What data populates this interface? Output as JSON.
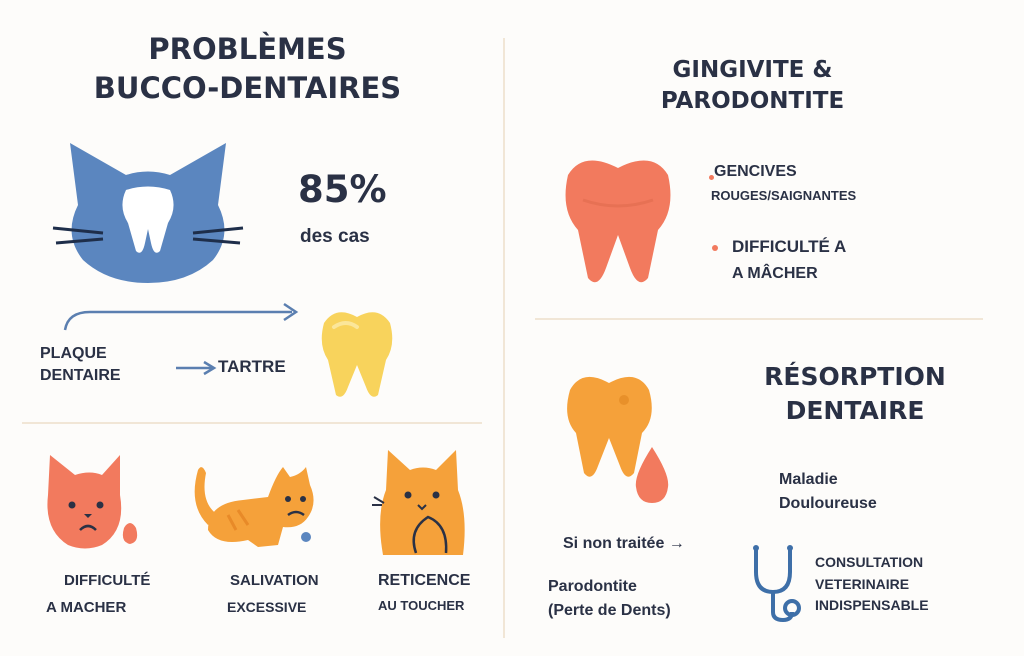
{
  "left": {
    "title_line1": "PROBLÈMES",
    "title_line2": "BUCCO-DENTAIRES",
    "stat_value": "85%",
    "stat_label": "des cas",
    "plaque_line1": "PLAQUE",
    "plaque_line2": "DENTAIRE",
    "tartre_label": "TARTRE",
    "symptoms": [
      {
        "line1": "DIFFICULTÉ",
        "line2": "A MACHER"
      },
      {
        "line1": "SALIVATION",
        "line2": "EXCESSIVE"
      },
      {
        "line1": "RETICENCE",
        "line2": "AU TOUCHER"
      }
    ]
  },
  "right_top": {
    "title_line1": "GINGIVITE &",
    "title_line2": "PARODONTITE",
    "bullet1_line1": "GENCIVES",
    "bullet1_line2": "ROUGES/SAIGNANTES",
    "bullet2_line1": "DIFFICULTÉ A",
    "bullet2_line2": "A MÂCHER"
  },
  "right_bottom": {
    "title_line1": "RÉSORPTION",
    "title_line2": "DENTAIRE",
    "maladie_line1": "Maladie",
    "maladie_line2": "Douloureuse",
    "untreated": "Si non traitée →",
    "result_line1": "Parodontite",
    "result_line2": "(Perte de Dents)",
    "consult_line1": "CONSULTATION",
    "consult_line2": "VETERINAIRE",
    "consult_line3": "INDISPENSABLE"
  },
  "colors": {
    "navy": "#2a3145",
    "cat_blue": "#5b86bf",
    "tooth_red": "#f27a5e",
    "tooth_yellow": "#f8d35c",
    "cat_orange": "#f5a13a",
    "divider": "#f1e6d6"
  },
  "icons": {
    "cat_head": "blue-cat-head-with-tooth-icon",
    "arrow_curve": "curved-arrow-icon",
    "arrow_small": "right-arrow-icon",
    "yellow_tooth": "yellow-tooth-icon",
    "red_tooth": "red-tooth-icon",
    "orange_tooth": "orange-tooth-icon",
    "blood_drop": "blood-drop-icon",
    "stethoscope": "stethoscope-icon",
    "cat_sad": "sad-red-cat-icon",
    "cat_drool": "drooling-orange-cat-icon",
    "cat_reticent": "reticent-orange-cat-icon"
  }
}
